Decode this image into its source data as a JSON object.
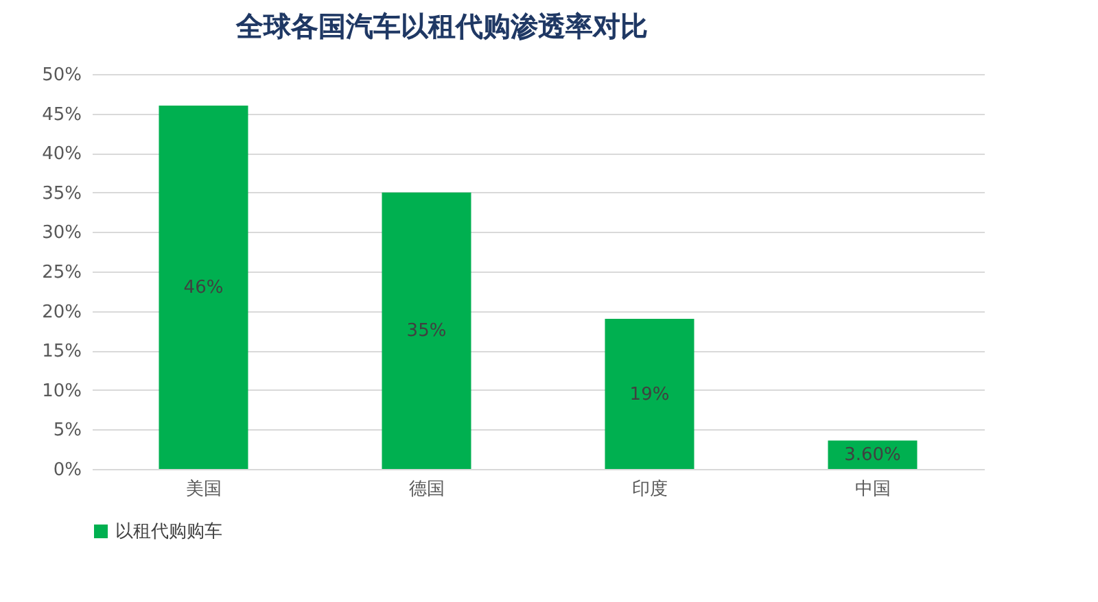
{
  "chart_data": {
    "type": "bar",
    "title": "全球各国汽车以租代购渗透率对比",
    "categories": [
      "美国",
      "德国",
      "印度",
      "中国"
    ],
    "series": [
      {
        "name": "以租代购购车",
        "color": "#00b050",
        "values": [
          46,
          35,
          19,
          3.6
        ],
        "value_labels": [
          "46%",
          "35%",
          "19%",
          "3.60%"
        ]
      }
    ],
    "ylim": [
      0,
      50
    ],
    "yticks": [
      {
        "value": 0,
        "label": "0%"
      },
      {
        "value": 5,
        "label": "5%"
      },
      {
        "value": 10,
        "label": "10%"
      },
      {
        "value": 15,
        "label": "15%"
      },
      {
        "value": 20,
        "label": "20%"
      },
      {
        "value": 25,
        "label": "25%"
      },
      {
        "value": 30,
        "label": "30%"
      },
      {
        "value": 35,
        "label": "35%"
      },
      {
        "value": 40,
        "label": "40%"
      },
      {
        "value": 45,
        "label": "45%"
      },
      {
        "value": 50,
        "label": "50%"
      }
    ],
    "grid": "y",
    "legend": "bottom"
  }
}
